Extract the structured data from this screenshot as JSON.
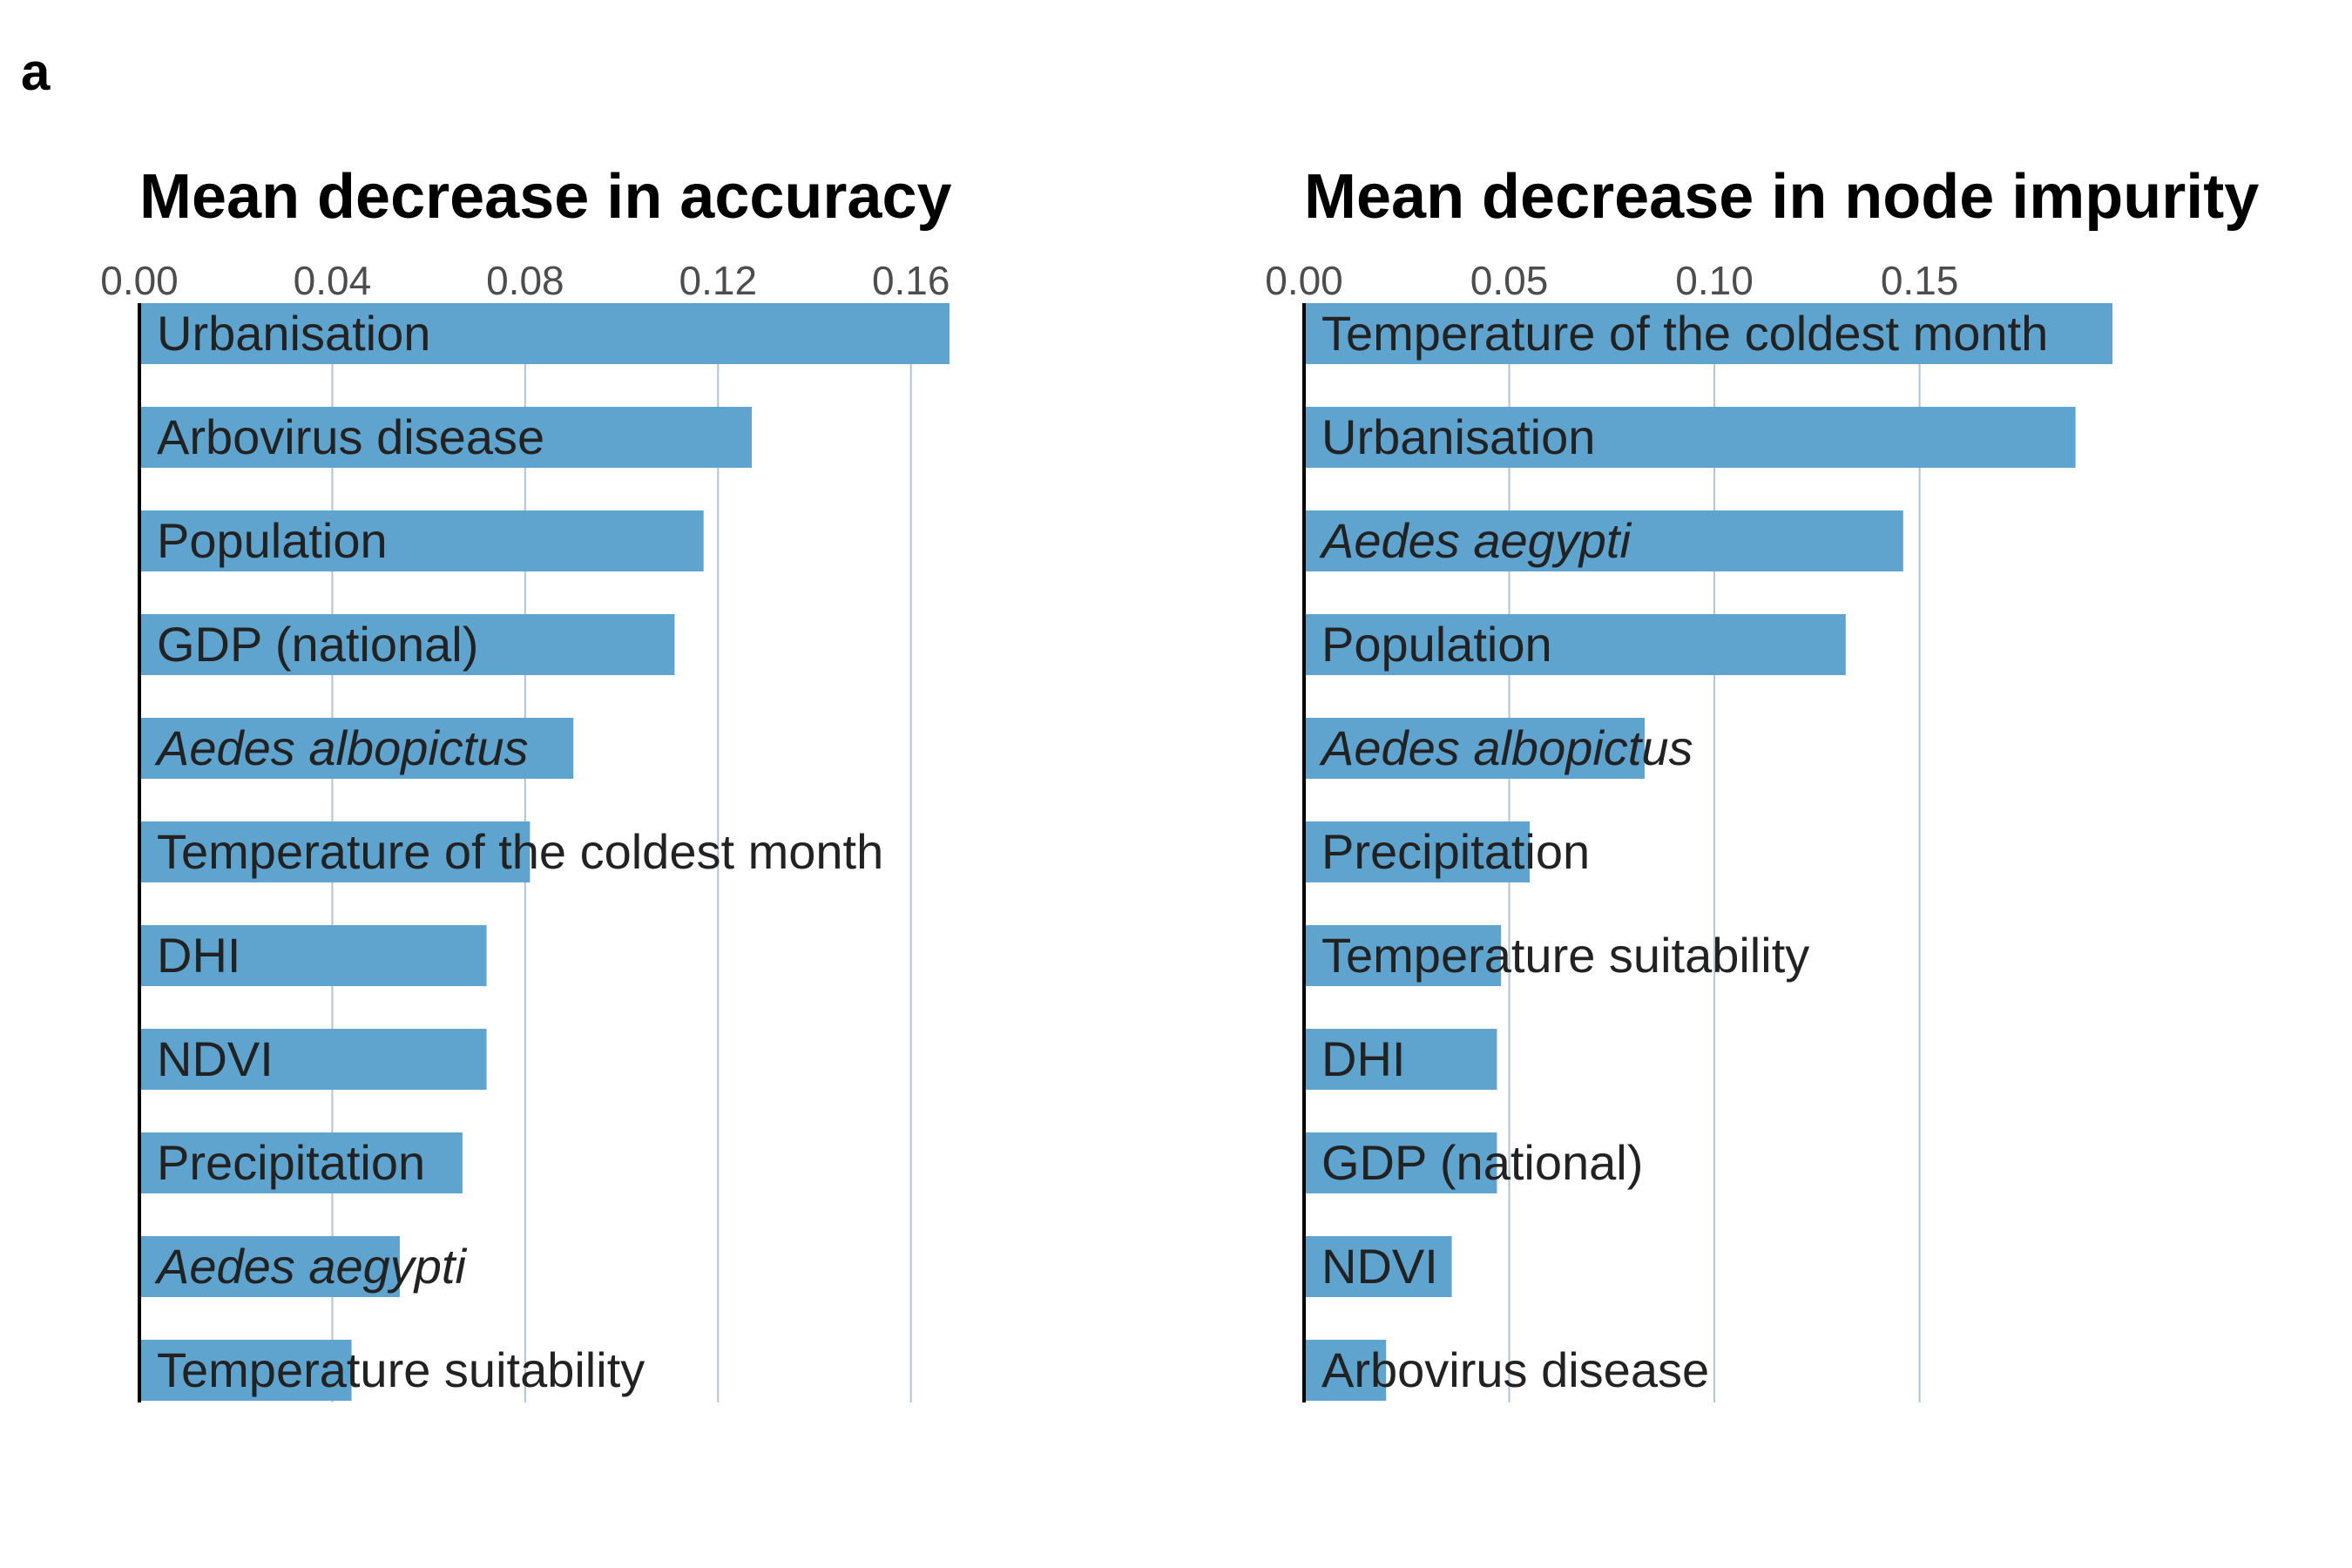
{
  "panel_label": "a",
  "chart_data": [
    {
      "type": "bar",
      "orientation": "horizontal",
      "title": "Mean decrease in accuracy",
      "xlim": [
        0,
        0.168
      ],
      "ticks": [
        "0.00",
        "0.04",
        "0.08",
        "0.12",
        "0.16"
      ],
      "tick_values": [
        0,
        0.04,
        0.08,
        0.12,
        0.16
      ],
      "grid": true,
      "bar_color": "#5fa3cf",
      "categories": [
        "Urbanisation",
        "Arbovirus disease",
        "Population",
        "GDP (national)",
        "Aedes albopictus",
        "Temperature of the coldest month",
        "DHI",
        "NDVI",
        "Precipitation",
        "Aedes aegypti",
        "Temperature suitability"
      ],
      "italic": [
        false,
        false,
        false,
        false,
        true,
        false,
        false,
        false,
        false,
        true,
        false
      ],
      "values": [
        0.168,
        0.127,
        0.117,
        0.111,
        0.09,
        0.081,
        0.072,
        0.072,
        0.067,
        0.054,
        0.044
      ]
    },
    {
      "type": "bar",
      "orientation": "horizontal",
      "title": "Mean decrease in node impurity",
      "xlim": [
        0,
        0.197
      ],
      "ticks": [
        "0.00",
        "0.05",
        "0.10",
        "0.15"
      ],
      "tick_values": [
        0,
        0.05,
        0.1,
        0.15
      ],
      "grid": true,
      "bar_color": "#5fa3cf",
      "categories": [
        "Temperature of the coldest month",
        "Urbanisation",
        "Aedes aegypti",
        "Population",
        "Aedes albopictus",
        "Precipitation",
        "Temperature suitability",
        "DHI",
        "GDP (national)",
        "NDVI",
        "Arbovirus disease"
      ],
      "italic": [
        false,
        false,
        true,
        false,
        true,
        false,
        false,
        false,
        false,
        false,
        false
      ],
      "values": [
        0.197,
        0.188,
        0.146,
        0.132,
        0.083,
        0.055,
        0.048,
        0.047,
        0.047,
        0.036,
        0.02
      ]
    }
  ]
}
